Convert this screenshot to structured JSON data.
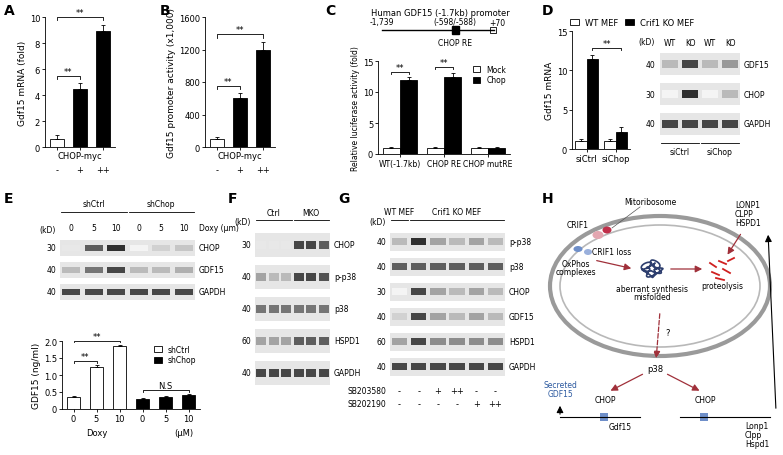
{
  "chart_data": [
    {
      "panel": "A",
      "type": "bar",
      "ylabel": "Gdf15 mRNA (fold)",
      "xlabel": "CHOP-myc",
      "categories": [
        "-",
        "+",
        "++"
      ],
      "values": [
        0.6,
        4.5,
        8.9
      ],
      "errors": [
        0.3,
        0.4,
        0.5
      ],
      "colors": [
        "#ffffff",
        "#000000",
        "#000000"
      ],
      "ylim": [
        0,
        10
      ],
      "yticks": [
        0,
        2,
        4,
        6,
        8,
        10
      ],
      "annotations": [
        {
          "text": "**",
          "between": [
            [
              0,
              0
            ],
            [
              0,
              1
            ]
          ]
        },
        {
          "text": "**",
          "between": [
            [
              0,
              0
            ],
            [
              0,
              2
            ]
          ]
        }
      ]
    },
    {
      "panel": "B",
      "type": "bar",
      "ylabel": "Gdf15 promoter activity (x1,000)",
      "xlabel": "CHOP-myc",
      "categories": [
        "-",
        "+",
        "++"
      ],
      "values": [
        100,
        600,
        1200
      ],
      "errors": [
        25,
        60,
        90
      ],
      "colors": [
        "#ffffff",
        "#000000",
        "#000000"
      ],
      "ylim": [
        0,
        1600
      ],
      "yticks": [
        0,
        400,
        800,
        1200,
        1600
      ],
      "annotations": [
        {
          "text": "**",
          "between": [
            [
              0,
              0
            ],
            [
              0,
              1
            ]
          ]
        },
        {
          "text": "**",
          "between": [
            [
              0,
              0
            ],
            [
              0,
              2
            ]
          ]
        }
      ]
    },
    {
      "panel": "C",
      "type": "bar",
      "ylabel": "Relative luciferase activity (fold)",
      "categories": [
        "WT(-1.7kb)",
        "CHOP RE",
        "CHOP mutRE"
      ],
      "series": [
        {
          "name": "Mock",
          "color": "#ffffff",
          "values": [
            1,
            1,
            1
          ],
          "errors": [
            0.15,
            0.15,
            0.1
          ]
        },
        {
          "name": "Chop",
          "color": "#000000",
          "values": [
            12,
            12.5,
            1
          ],
          "errors": [
            0.4,
            0.6,
            0.1
          ]
        }
      ],
      "ylim": [
        0,
        15
      ],
      "yticks": [
        0,
        5,
        10,
        15
      ],
      "legend": "upper right",
      "annotations": [
        {
          "text": "**",
          "between": [
            [
              0,
              0
            ],
            [
              1,
              0
            ]
          ]
        },
        {
          "text": "**",
          "between": [
            [
              0,
              1
            ],
            [
              1,
              1
            ]
          ]
        }
      ]
    },
    {
      "panel": "D",
      "type": "bar",
      "ylabel": "Gdf15 mRNA",
      "categories": [
        "siCtrl",
        "siChop"
      ],
      "series": [
        {
          "name": "WT MEF",
          "color": "#ffffff",
          "values": [
            1,
            1
          ],
          "errors": [
            0.3,
            0.3
          ]
        },
        {
          "name": "Crif1 KO MEF",
          "color": "#000000",
          "values": [
            11.5,
            2.2
          ],
          "errors": [
            0.5,
            0.6
          ]
        }
      ],
      "ylim": [
        0,
        15
      ],
      "yticks": [
        0,
        5,
        10,
        15
      ],
      "legend": "above",
      "annotations": [
        {
          "text": "**",
          "between": [
            [
              1,
              0
            ],
            [
              1,
              1
            ]
          ]
        }
      ]
    },
    {
      "panel": "E",
      "type": "bar",
      "ylabel": "GDF15 (ng/ml)",
      "xlabel": "Doxy",
      "xunit": "(μM)",
      "categories": [
        "0",
        "5",
        "10",
        "0",
        "5",
        "10"
      ],
      "series": [
        {
          "name": "shCtrl",
          "color": "#ffffff",
          "values": [
            0.35,
            1.25,
            1.85,
            null,
            null,
            null
          ],
          "errors": [
            0.03,
            0.03,
            0.04,
            null,
            null,
            null
          ]
        },
        {
          "name": "shChop",
          "color": "#000000",
          "values": [
            null,
            null,
            null,
            0.3,
            0.35,
            0.4
          ],
          "errors": [
            null,
            null,
            null,
            0.02,
            0.03,
            0.03
          ]
        }
      ],
      "ylim": [
        0,
        2.0
      ],
      "yticks": [
        0,
        0.5,
        1.0,
        1.5,
        2.0
      ],
      "legend": "upper right",
      "annotations": [
        {
          "text": "**",
          "between": [
            [
              0,
              0
            ],
            [
              0,
              1
            ]
          ]
        },
        {
          "text": "**",
          "between": [
            [
              0,
              0
            ],
            [
              0,
              2
            ]
          ]
        },
        {
          "text": "N.S",
          "between": [
            [
              1,
              3
            ],
            [
              1,
              5
            ]
          ]
        }
      ]
    }
  ],
  "promoter": {
    "title": "Human GDF15 (-1.7kb) promoter",
    "start": "-1,739",
    "site": "(-598/-588)",
    "end": "+70",
    "element": "CHOP RE"
  },
  "blots": [
    {
      "panel": "D",
      "kd_header": "(kD)",
      "lanes": [
        "WT",
        "KO",
        "WT",
        "KO"
      ],
      "groups": [
        {
          "label": "siCtrl",
          "span": [
            0,
            1
          ]
        },
        {
          "label": "siChop",
          "span": [
            2,
            3
          ]
        }
      ],
      "rows": [
        {
          "name": "GDF15",
          "kd": 40,
          "intensity": [
            0.3,
            0.8,
            0.3,
            0.45
          ]
        },
        {
          "name": "CHOP",
          "kd": 30,
          "intensity": [
            0.05,
            0.9,
            0.05,
            0.3
          ]
        },
        {
          "name": "GAPDH",
          "kd": 40,
          "intensity": [
            0.8,
            0.8,
            0.8,
            0.8
          ]
        }
      ]
    },
    {
      "panel": "E",
      "kd_header": "(kD)",
      "lanes": [
        "0",
        "5",
        "10",
        "0",
        "5",
        "10"
      ],
      "lanes_note": "Doxy (μm)",
      "groups": [
        {
          "label": "shCtrl",
          "span": [
            0,
            2
          ]
        },
        {
          "label": "shChop",
          "span": [
            3,
            5
          ]
        }
      ],
      "rows": [
        {
          "name": "CHOP",
          "kd": 30,
          "intensity": [
            0.1,
            0.7,
            0.9,
            0.05,
            0.2,
            0.25
          ]
        },
        {
          "name": "GDF15",
          "kd": 40,
          "intensity": [
            0.3,
            0.6,
            0.8,
            0.3,
            0.3,
            0.35
          ]
        },
        {
          "name": "GAPDH",
          "kd": 40,
          "intensity": [
            0.8,
            0.8,
            0.8,
            0.8,
            0.8,
            0.8
          ]
        }
      ]
    },
    {
      "panel": "F",
      "kd_header": "(kD)",
      "groups": [
        {
          "label": "Ctrl",
          "span": [
            0,
            2
          ]
        },
        {
          "label": "MKO",
          "span": [
            3,
            5
          ]
        }
      ],
      "rows": [
        {
          "name": "CHOP",
          "kd": 30,
          "intensity": [
            0.1,
            0.1,
            0.1,
            0.8,
            0.8,
            0.7
          ]
        },
        {
          "name": "p-p38",
          "kd": 40,
          "intensity": [
            0.4,
            0.3,
            0.3,
            0.8,
            0.8,
            0.75
          ]
        },
        {
          "name": "p38",
          "kd": 40,
          "intensity": [
            0.6,
            0.6,
            0.6,
            0.6,
            0.6,
            0.6
          ]
        },
        {
          "name": "HSPD1",
          "kd": 60,
          "intensity": [
            0.4,
            0.4,
            0.4,
            0.7,
            0.7,
            0.7
          ]
        },
        {
          "name": "GAPDH",
          "kd": 40,
          "intensity": [
            0.8,
            0.8,
            0.8,
            0.8,
            0.8,
            0.8
          ]
        }
      ]
    },
    {
      "panel": "G",
      "kd_header": "(kD)",
      "groups": [
        {
          "label": "WT MEF",
          "span": [
            0,
            0
          ]
        },
        {
          "label": "Crif1 KO MEF",
          "span": [
            1,
            5
          ]
        }
      ],
      "rows": [
        {
          "name": "p-p38",
          "kd": 40,
          "intensity": [
            0.3,
            0.9,
            0.4,
            0.3,
            0.4,
            0.3
          ]
        },
        {
          "name": "p38",
          "kd": 40,
          "intensity": [
            0.7,
            0.7,
            0.7,
            0.7,
            0.7,
            0.7
          ]
        },
        {
          "name": "CHOP",
          "kd": 30,
          "intensity": [
            0.05,
            0.8,
            0.4,
            0.3,
            0.4,
            0.3
          ]
        },
        {
          "name": "GDF15",
          "kd": 40,
          "intensity": [
            0.2,
            0.8,
            0.4,
            0.3,
            0.4,
            0.3
          ]
        },
        {
          "name": "HSPD1",
          "kd": 60,
          "intensity": [
            0.4,
            0.8,
            0.5,
            0.5,
            0.5,
            0.5
          ]
        },
        {
          "name": "GAPDH",
          "kd": 40,
          "intensity": [
            0.8,
            0.8,
            0.8,
            0.8,
            0.8,
            0.8
          ]
        }
      ],
      "treatments": [
        {
          "name": "SB203580",
          "marks": [
            "-",
            "-",
            "+",
            "++",
            "-",
            "-"
          ]
        },
        {
          "name": "SB202190",
          "marks": [
            "-",
            "-",
            "-",
            "-",
            "+",
            "++"
          ]
        }
      ]
    }
  ],
  "diagram": {
    "panel": "H",
    "mitoribosome": "Mitoribosome",
    "crif1": "CRIF1",
    "oxphos": [
      "OxPhos",
      "complexes"
    ],
    "loss": "CRIF1 loss",
    "misfolded": [
      "aberrant synthesis",
      "misfolded"
    ],
    "proteolysis": "proteolysis",
    "proteases": [
      "LONP1",
      "CLPP",
      "HSPD1"
    ],
    "unknown": "?",
    "kinase": "p38",
    "factor": [
      "CHOP",
      "CHOP"
    ],
    "secreted": [
      "Secreted",
      "GDF15"
    ],
    "gene": "Gdf15",
    "genes": [
      "Lonp1",
      "Clpp",
      "Hspd1"
    ]
  }
}
